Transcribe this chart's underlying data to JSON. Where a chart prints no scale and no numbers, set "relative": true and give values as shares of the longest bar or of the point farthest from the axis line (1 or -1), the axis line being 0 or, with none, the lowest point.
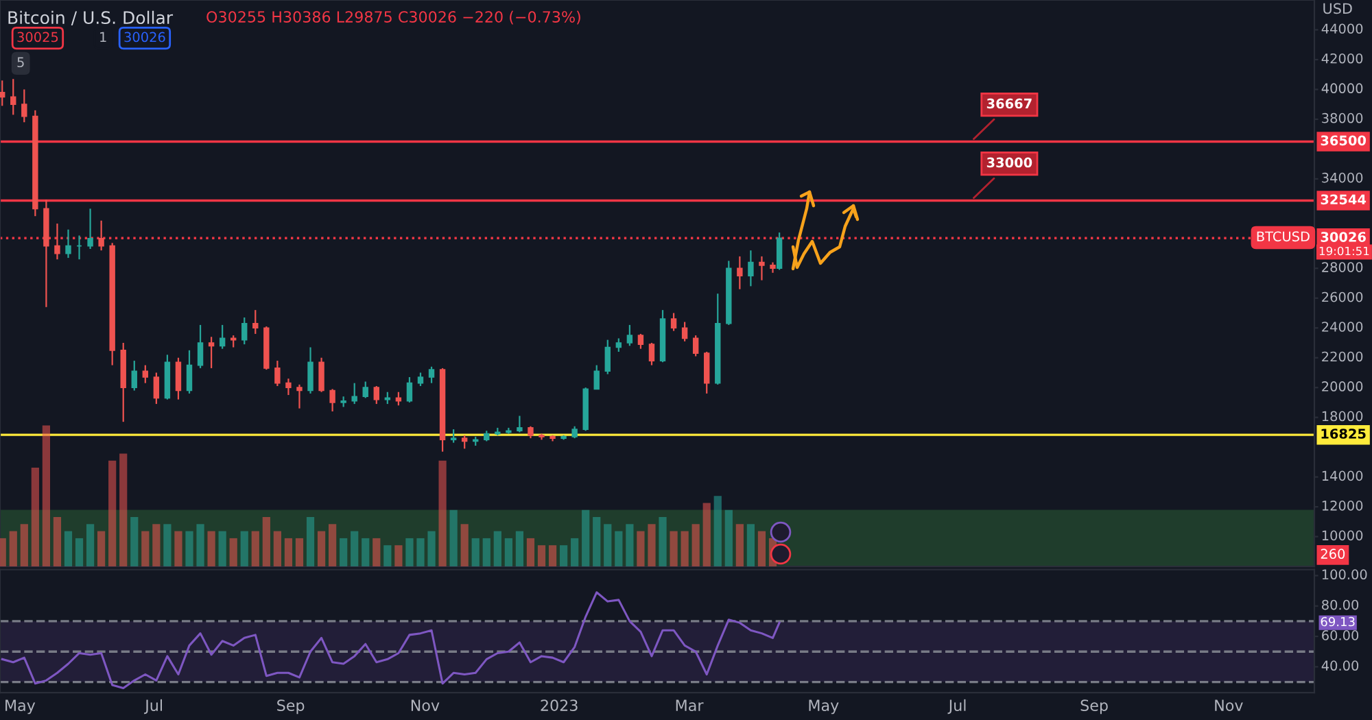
{
  "chart_data": [
    {
      "type": "candlestick",
      "title": "Bitcoin / U.S. Dollar",
      "subtitle": "O30255 H30386 L29875 C30026 −220 (−0.73%)",
      "ylabel": "USD",
      "tick_labels": "y",
      "grid": false,
      "x": [
        "2022-04-23",
        "2022-04-28",
        "2022-05-03",
        "2022-05-08",
        "2022-05-13",
        "2022-05-18",
        "2022-05-23",
        "2022-05-28",
        "2022-06-02",
        "2022-06-07",
        "2022-06-12",
        "2022-06-17",
        "2022-06-22",
        "2022-06-27",
        "2022-07-02",
        "2022-07-07",
        "2022-07-12",
        "2022-07-17",
        "2022-07-22",
        "2022-07-27",
        "2022-08-01",
        "2022-08-06",
        "2022-08-11",
        "2022-08-16",
        "2022-08-21",
        "2022-08-26",
        "2022-08-31",
        "2022-09-05",
        "2022-09-10",
        "2022-09-15",
        "2022-09-20",
        "2022-09-25",
        "2022-09-30",
        "2022-10-05",
        "2022-10-10",
        "2022-10-15",
        "2022-10-20",
        "2022-10-25",
        "2022-10-30",
        "2022-11-04",
        "2022-11-09",
        "2022-11-14",
        "2022-11-19",
        "2022-11-24",
        "2022-11-29",
        "2022-12-04",
        "2022-12-09",
        "2022-12-14",
        "2022-12-19",
        "2022-12-24",
        "2022-12-29",
        "2023-01-03",
        "2023-01-08",
        "2023-01-13",
        "2023-01-18",
        "2023-01-23",
        "2023-01-28",
        "2023-02-02",
        "2023-02-07",
        "2023-02-12",
        "2023-02-17",
        "2023-02-22",
        "2023-02-27",
        "2023-03-04",
        "2023-03-09",
        "2023-03-14",
        "2023-03-19",
        "2023-03-24",
        "2023-03-29",
        "2023-04-03",
        "2023-04-08",
        "2023-04-11"
      ],
      "ohlc": [
        [
          39800,
          40600,
          38900,
          39500
        ],
        [
          39500,
          40700,
          38300,
          39000
        ],
        [
          39000,
          40000,
          37800,
          38200
        ],
        [
          38200,
          38600,
          31500,
          32000
        ],
        [
          32000,
          32600,
          25400,
          29500
        ],
        [
          29500,
          31000,
          28600,
          29000
        ],
        [
          29000,
          30600,
          28700,
          29500
        ],
        [
          29500,
          30200,
          28600,
          29500
        ],
        [
          29500,
          32000,
          29300,
          30000
        ],
        [
          30000,
          31200,
          29200,
          29500
        ],
        [
          29500,
          29700,
          21500,
          22500
        ],
        [
          22500,
          23000,
          17700,
          20000
        ],
        [
          20000,
          21800,
          19800,
          21100
        ],
        [
          21100,
          21500,
          20300,
          20700
        ],
        [
          20700,
          21000,
          18900,
          19300
        ],
        [
          19300,
          22200,
          19200,
          21700
        ],
        [
          21700,
          22000,
          19200,
          19800
        ],
        [
          19800,
          22500,
          19600,
          21500
        ],
        [
          21500,
          24200,
          21300,
          23000
        ],
        [
          23000,
          23400,
          21300,
          22800
        ],
        [
          22800,
          24200,
          22600,
          23300
        ],
        [
          23300,
          23500,
          22700,
          23200
        ],
        [
          23200,
          24700,
          22900,
          24300
        ],
        [
          24300,
          25200,
          23600,
          24000
        ],
        [
          24000,
          24100,
          21200,
          21300
        ],
        [
          21300,
          21800,
          20100,
          20300
        ],
        [
          20300,
          20600,
          19500,
          20000
        ],
        [
          20000,
          20200,
          18600,
          19800
        ],
        [
          19800,
          22700,
          19600,
          21700
        ],
        [
          21700,
          22000,
          19700,
          19800
        ],
        [
          19800,
          19900,
          18400,
          19000
        ],
        [
          19000,
          19400,
          18700,
          19100
        ],
        [
          19100,
          20300,
          18900,
          19400
        ],
        [
          19400,
          20400,
          19300,
          20000
        ],
        [
          20000,
          20100,
          18900,
          19200
        ],
        [
          19200,
          19700,
          18900,
          19300
        ],
        [
          19300,
          19700,
          18800,
          19100
        ],
        [
          19100,
          20700,
          19000,
          20300
        ],
        [
          20300,
          21000,
          20100,
          20700
        ],
        [
          20700,
          21400,
          20300,
          21200
        ],
        [
          21200,
          21300,
          15700,
          16500
        ],
        [
          16500,
          17200,
          16300,
          16600
        ],
        [
          16600,
          16800,
          15900,
          16400
        ],
        [
          16400,
          16700,
          16100,
          16500
        ],
        [
          16500,
          17100,
          16400,
          16900
        ],
        [
          16900,
          17300,
          16800,
          17000
        ],
        [
          17000,
          17300,
          16900,
          17100
        ],
        [
          17100,
          18100,
          17000,
          17300
        ],
        [
          17300,
          17400,
          16600,
          16800
        ],
        [
          16800,
          16900,
          16500,
          16700
        ],
        [
          16700,
          16800,
          16400,
          16600
        ],
        [
          16600,
          16800,
          16500,
          16700
        ],
        [
          16700,
          17400,
          16600,
          17200
        ],
        [
          17200,
          20000,
          17100,
          19900
        ],
        [
          19900,
          21500,
          19900,
          21100
        ],
        [
          21100,
          23200,
          20900,
          22700
        ],
        [
          22700,
          23300,
          22400,
          23000
        ],
        [
          23000,
          24200,
          22800,
          23500
        ],
        [
          23500,
          23600,
          22600,
          22900
        ],
        [
          22900,
          23000,
          21500,
          21800
        ],
        [
          21800,
          25200,
          21700,
          24600
        ],
        [
          24600,
          25000,
          23800,
          24000
        ],
        [
          24000,
          24400,
          23100,
          23300
        ],
        [
          23300,
          23500,
          22100,
          22300
        ],
        [
          22300,
          22400,
          19600,
          20300
        ],
        [
          20300,
          26300,
          20200,
          24300
        ],
        [
          24300,
          28500,
          24200,
          28000
        ],
        [
          28000,
          28800,
          26600,
          27500
        ],
        [
          27500,
          29200,
          26800,
          28400
        ],
        [
          28400,
          28800,
          27200,
          28200
        ],
        [
          28200,
          28400,
          27700,
          28000
        ],
        [
          28000,
          30400,
          27900,
          30026
        ]
      ],
      "colors": [
        "#ef5350",
        "#ef5350",
        "#ef5350",
        "#ef5350",
        "#ef5350",
        "#ef5350",
        "#26a69a",
        "#26a69a",
        "#26a69a",
        "#ef5350",
        "#ef5350",
        "#ef5350",
        "#26a69a",
        "#ef5350",
        "#ef5350",
        "#26a69a",
        "#ef5350",
        "#26a69a",
        "#26a69a",
        "#ef5350",
        "#26a69a",
        "#ef5350",
        "#26a69a",
        "#ef5350",
        "#ef5350",
        "#ef5350",
        "#ef5350",
        "#ef5350",
        "#26a69a",
        "#ef5350",
        "#ef5350",
        "#26a69a",
        "#26a69a",
        "#26a69a",
        "#ef5350",
        "#26a69a",
        "#ef5350",
        "#26a69a",
        "#26a69a",
        "#26a69a",
        "#ef5350",
        "#26a69a",
        "#ef5350",
        "#26a69a",
        "#26a69a",
        "#26a69a",
        "#26a69a",
        "#26a69a",
        "#ef5350",
        "#ef5350",
        "#ef5350",
        "#26a69a",
        "#26a69a",
        "#26a69a",
        "#26a69a",
        "#26a69a",
        "#26a69a",
        "#26a69a",
        "#ef5350",
        "#ef5350",
        "#26a69a",
        "#ef5350",
        "#ef5350",
        "#ef5350",
        "#ef5350",
        "#26a69a",
        "#26a69a",
        "#ef5350",
        "#26a69a",
        "#ef5350",
        "#ef5350",
        "#26a69a"
      ],
      "xlim": [
        "2022-04-22",
        "2023-12-10"
      ],
      "ylim": [
        8000,
        46000
      ],
      "yticks": [
        10000,
        12000,
        14000,
        18000,
        20000,
        22000,
        24000,
        26000,
        28000,
        34000,
        38000,
        40000,
        42000,
        44000
      ],
      "ref_lines": [
        {
          "axis": "y",
          "value": 36500,
          "label": "36500",
          "color": "#f23645",
          "line_style": "solid"
        },
        {
          "axis": "y",
          "value": 32544,
          "label": "32544",
          "color": "#f23645",
          "line_style": "solid"
        },
        {
          "axis": "y",
          "value": 30026,
          "label": "30026",
          "color": "#f23645",
          "line_style": "dotted"
        },
        {
          "axis": "y",
          "value": 16825,
          "label": "16825",
          "color": "#ffeb3b",
          "line_style": "solid"
        }
      ],
      "bands": [
        {
          "axis": "y",
          "from": 8000,
          "to": 11800,
          "color": "#1f3d2c"
        }
      ],
      "annotations": [
        {
          "text": "36667",
          "x": "2023-07-07",
          "y": 36500
        },
        {
          "text": "33000",
          "x": "2023-07-07",
          "y": 32544
        },
        "BTCUSD",
        "19:01:51",
        "30025",
        "1",
        "30026",
        "5"
      ]
    },
    {
      "type": "bar",
      "relative": true,
      "tick_labels": false,
      "xlim": [
        "2022-04-22",
        "2023-12-10"
      ],
      "x": [
        "2022-04-23",
        "2022-04-28",
        "2022-05-03",
        "2022-05-08",
        "2022-05-13",
        "2022-05-18",
        "2022-05-23",
        "2022-05-28",
        "2022-06-02",
        "2022-06-07",
        "2022-06-12",
        "2022-06-17",
        "2022-06-22",
        "2022-06-27",
        "2022-07-02",
        "2022-07-07",
        "2022-07-12",
        "2022-07-17",
        "2022-07-22",
        "2022-07-27",
        "2022-08-01",
        "2022-08-06",
        "2022-08-11",
        "2022-08-16",
        "2022-08-21",
        "2022-08-26",
        "2022-08-31",
        "2022-09-05",
        "2022-09-10",
        "2022-09-15",
        "2022-09-20",
        "2022-09-25",
        "2022-09-30",
        "2022-10-05",
        "2022-10-10",
        "2022-10-15",
        "2022-10-20",
        "2022-10-25",
        "2022-10-30",
        "2022-11-04",
        "2022-11-09",
        "2022-11-14",
        "2022-11-19",
        "2022-11-24",
        "2022-11-29",
        "2022-12-04",
        "2022-12-09",
        "2022-12-14",
        "2022-12-19",
        "2022-12-24",
        "2022-12-29",
        "2023-01-03",
        "2023-01-08",
        "2023-01-13",
        "2023-01-18",
        "2023-01-23",
        "2023-01-28",
        "2023-02-02",
        "2023-02-07",
        "2023-02-12",
        "2023-02-17",
        "2023-02-22",
        "2023-02-27",
        "2023-03-04",
        "2023-03-09",
        "2023-03-14",
        "2023-03-19",
        "2023-03-24",
        "2023-03-29",
        "2023-04-03",
        "2023-04-08"
      ],
      "values": [
        0.2,
        0.25,
        0.3,
        0.7,
        1,
        0.35,
        0.25,
        0.2,
        0.3,
        0.25,
        0.75,
        0.8,
        0.35,
        0.25,
        0.3,
        0.3,
        0.25,
        0.25,
        0.3,
        0.25,
        0.25,
        0.2,
        0.25,
        0.25,
        0.35,
        0.25,
        0.2,
        0.2,
        0.35,
        0.25,
        0.3,
        0.2,
        0.25,
        0.2,
        0.2,
        0.15,
        0.15,
        0.2,
        0.2,
        0.25,
        0.75,
        0.4,
        0.3,
        0.2,
        0.2,
        0.25,
        0.2,
        0.25,
        0.2,
        0.15,
        0.15,
        0.15,
        0.2,
        0.4,
        0.35,
        0.3,
        0.25,
        0.3,
        0.25,
        0.3,
        0.35,
        0.25,
        0.25,
        0.3,
        0.45,
        0.5,
        0.4,
        0.3,
        0.3,
        0.25,
        0.2
      ],
      "annotations": [
        "260"
      ],
      "colors": [
        "#ef5350",
        "#ef5350",
        "#ef5350",
        "#ef5350",
        "#ef5350",
        "#ef5350",
        "#26a69a",
        "#26a69a",
        "#26a69a",
        "#ef5350",
        "#ef5350",
        "#ef5350",
        "#26a69a",
        "#ef5350",
        "#ef5350",
        "#26a69a",
        "#ef5350",
        "#26a69a",
        "#26a69a",
        "#ef5350",
        "#26a69a",
        "#ef5350",
        "#26a69a",
        "#ef5350",
        "#ef5350",
        "#ef5350",
        "#ef5350",
        "#ef5350",
        "#26a69a",
        "#ef5350",
        "#ef5350",
        "#26a69a",
        "#26a69a",
        "#26a69a",
        "#ef5350",
        "#26a69a",
        "#ef5350",
        "#26a69a",
        "#26a69a",
        "#26a69a",
        "#ef5350",
        "#26a69a",
        "#ef5350",
        "#26a69a",
        "#26a69a",
        "#26a69a",
        "#26a69a",
        "#26a69a",
        "#ef5350",
        "#ef5350",
        "#ef5350",
        "#26a69a",
        "#26a69a",
        "#26a69a",
        "#26a69a",
        "#26a69a",
        "#26a69a",
        "#26a69a",
        "#ef5350",
        "#ef5350",
        "#26a69a",
        "#ef5350",
        "#ef5350",
        "#ef5350",
        "#ef5350",
        "#26a69a",
        "#26a69a",
        "#ef5350",
        "#26a69a",
        "#ef5350",
        "#ef5350"
      ]
    },
    {
      "type": "line",
      "grid": false,
      "x": [
        "2022-04-23",
        "2022-04-28",
        "2022-05-03",
        "2022-05-08",
        "2022-05-13",
        "2022-05-18",
        "2022-05-23",
        "2022-05-28",
        "2022-06-02",
        "2022-06-07",
        "2022-06-12",
        "2022-06-17",
        "2022-06-22",
        "2022-06-27",
        "2022-07-02",
        "2022-07-07",
        "2022-07-12",
        "2022-07-17",
        "2022-07-22",
        "2022-07-27",
        "2022-08-01",
        "2022-08-06",
        "2022-08-11",
        "2022-08-16",
        "2022-08-21",
        "2022-08-26",
        "2022-08-31",
        "2022-09-05",
        "2022-09-10",
        "2022-09-15",
        "2022-09-20",
        "2022-09-25",
        "2022-09-30",
        "2022-10-05",
        "2022-10-10",
        "2022-10-15",
        "2022-10-20",
        "2022-10-25",
        "2022-10-30",
        "2022-11-04",
        "2022-11-09",
        "2022-11-14",
        "2022-11-19",
        "2022-11-24",
        "2022-11-29",
        "2022-12-04",
        "2022-12-09",
        "2022-12-14",
        "2022-12-19",
        "2022-12-24",
        "2022-12-29",
        "2023-01-03",
        "2023-01-08",
        "2023-01-13",
        "2023-01-18",
        "2023-01-23",
        "2023-01-28",
        "2023-02-02",
        "2023-02-07",
        "2023-02-12",
        "2023-02-17",
        "2023-02-22",
        "2023-02-27",
        "2023-03-04",
        "2023-03-09",
        "2023-03-14",
        "2023-03-19",
        "2023-03-24",
        "2023-03-29",
        "2023-04-03",
        "2023-04-08",
        "2023-04-11"
      ],
      "series": [
        {
          "color": "#7e57c2",
          "values": [
            45,
            43,
            46,
            29,
            31,
            36,
            42,
            49,
            48,
            49,
            28,
            26,
            31,
            35,
            31,
            47,
            35,
            54,
            62,
            48,
            57,
            54,
            59,
            61,
            34,
            36,
            36,
            33,
            50,
            59,
            43,
            42,
            47,
            55,
            43,
            45,
            49,
            61,
            62,
            64,
            29,
            36,
            35,
            36,
            45,
            49,
            50,
            56,
            43,
            47,
            46,
            43,
            53,
            73,
            89,
            83,
            84,
            70,
            63,
            47,
            64,
            64,
            54,
            50,
            35,
            54,
            71,
            69,
            64,
            62,
            59,
            69
          ]
        }
      ],
      "xlim": [
        "2022-04-22",
        "2023-12-10"
      ],
      "ylim": [
        23,
        104
      ],
      "xticks": [
        {
          "value": "2022-05-01",
          "label": "May"
        },
        {
          "value": "2022-07-01",
          "label": "Jul"
        },
        {
          "value": "2022-09-01",
          "label": "Sep"
        },
        {
          "value": "2022-11-01",
          "label": "Nov"
        },
        {
          "value": "2023-01-01",
          "label": "2023"
        },
        {
          "value": "2023-03-01",
          "label": "Mar"
        },
        {
          "value": "2023-05-01",
          "label": "May"
        },
        {
          "value": "2023-07-01",
          "label": "Jul"
        },
        {
          "value": "2023-09-01",
          "label": "Sep"
        },
        {
          "value": "2023-11-01",
          "label": "Nov"
        }
      ],
      "yticks": [
        {
          "value": 40,
          "label": "40.00"
        },
        {
          "value": 60,
          "label": "60.00"
        },
        {
          "value": 80,
          "label": "80.00"
        },
        {
          "value": 100,
          "label": "100.00"
        }
      ],
      "ref_lines": [
        {
          "axis": "y",
          "value": 70,
          "color": "#787b86",
          "line_style": "dashed"
        },
        {
          "axis": "y",
          "value": 50,
          "color": "#787b86",
          "line_style": "dashed"
        },
        {
          "axis": "y",
          "value": 30,
          "color": "#787b86",
          "line_style": "dashed"
        }
      ],
      "bands": [
        {
          "axis": "y",
          "from": 30,
          "to": 70,
          "color": "#221e38"
        }
      ],
      "annotations": [
        "69.13"
      ]
    }
  ]
}
